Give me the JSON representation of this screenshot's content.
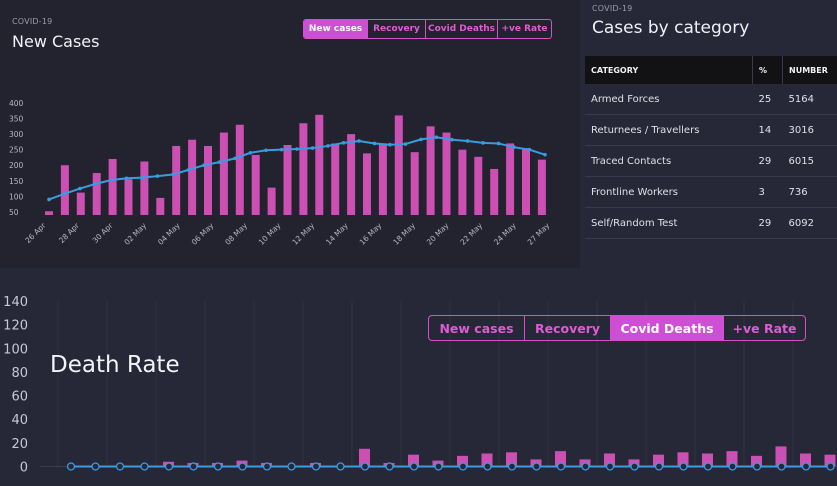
{
  "new_cases": {
    "eyebrow": "COVID-19",
    "title": "New Cases",
    "tabs": [
      {
        "label": "New cases",
        "active": true
      },
      {
        "label": "Recovery",
        "active": false
      },
      {
        "label": "Covid Deaths",
        "active": false
      },
      {
        "label": "+ve Rate",
        "active": false
      }
    ]
  },
  "category": {
    "eyebrow": "COVID-19",
    "title": "Cases by category",
    "headers": [
      "CATEGORY",
      "%",
      "NUMBER"
    ],
    "rows": [
      {
        "category": "Armed Forces",
        "pct": "25",
        "number": "5164"
      },
      {
        "category": "Returnees / Travellers",
        "pct": "14",
        "number": "3016"
      },
      {
        "category": "Traced Contacts",
        "pct": "29",
        "number": "6015"
      },
      {
        "category": "Frontline Workers",
        "pct": "3",
        "number": "736"
      },
      {
        "category": "Self/Random Test",
        "pct": "29",
        "number": "6092"
      }
    ]
  },
  "death": {
    "title": "Death Rate",
    "tabs": [
      {
        "label": "New cases",
        "active": false
      },
      {
        "label": "Recovery",
        "active": false
      },
      {
        "label": "Covid Deaths",
        "active": true
      },
      {
        "label": "+ve Rate",
        "active": false
      }
    ]
  },
  "colors": {
    "bar": "#cc4fb4",
    "line": "#3b9be0",
    "accent": "#cc4fd6"
  },
  "chart_data": [
    {
      "type": "bar",
      "title": "New Cases",
      "x_tick_labels": [
        "26 Apr",
        "28 Apr",
        "30 Apr",
        "02 May",
        "04 May",
        "06 May",
        "08 May",
        "10 May",
        "12 May",
        "14 May",
        "16 May",
        "18 May",
        "20 May",
        "22 May",
        "24 May",
        "27 May"
      ],
      "y_ticks": [
        50,
        100,
        150,
        200,
        250,
        300,
        350,
        400
      ],
      "ylim": [
        40,
        400
      ],
      "grid": false,
      "series": [
        {
          "name": "New cases",
          "type": "bar",
          "values": [
            52,
            200,
            112,
            175,
            220,
            155,
            212,
            95,
            262,
            282,
            262,
            305,
            330,
            233,
            128,
            265,
            335,
            362,
            270,
            300,
            238,
            270,
            360,
            242,
            325,
            305,
            250,
            227,
            188,
            270,
            255,
            218
          ]
        },
        {
          "type": "line",
          "values": [
            90,
            108,
            125,
            140,
            152,
            158,
            160,
            165,
            170,
            185,
            200,
            210,
            222,
            240,
            248,
            250,
            252,
            255,
            262,
            272,
            278,
            270,
            266,
            268,
            283,
            290,
            282,
            278,
            272,
            270,
            258,
            250,
            234
          ]
        }
      ]
    },
    {
      "type": "bar",
      "title": "Death Rate",
      "y_ticks": [
        0,
        20,
        40,
        60,
        80,
        100,
        120,
        140
      ],
      "ylim": [
        0,
        140
      ],
      "grid": true,
      "series": [
        {
          "name": "Covid Deaths",
          "type": "bar",
          "values": [
            0,
            0,
            0,
            0,
            4,
            3,
            3,
            5,
            3,
            0,
            3,
            0,
            15,
            3,
            10,
            5,
            9,
            11,
            12,
            6,
            13,
            6,
            11,
            6,
            10,
            12,
            11,
            13,
            9,
            17,
            11,
            10
          ]
        },
        {
          "type": "line",
          "values": [
            0,
            0,
            0,
            0,
            0,
            0,
            0,
            0,
            0,
            0,
            0,
            0,
            0,
            0,
            0,
            0,
            0,
            0,
            0,
            0,
            0,
            0,
            0,
            0,
            0,
            0,
            0,
            0,
            0,
            0,
            0,
            0
          ]
        }
      ]
    }
  ]
}
